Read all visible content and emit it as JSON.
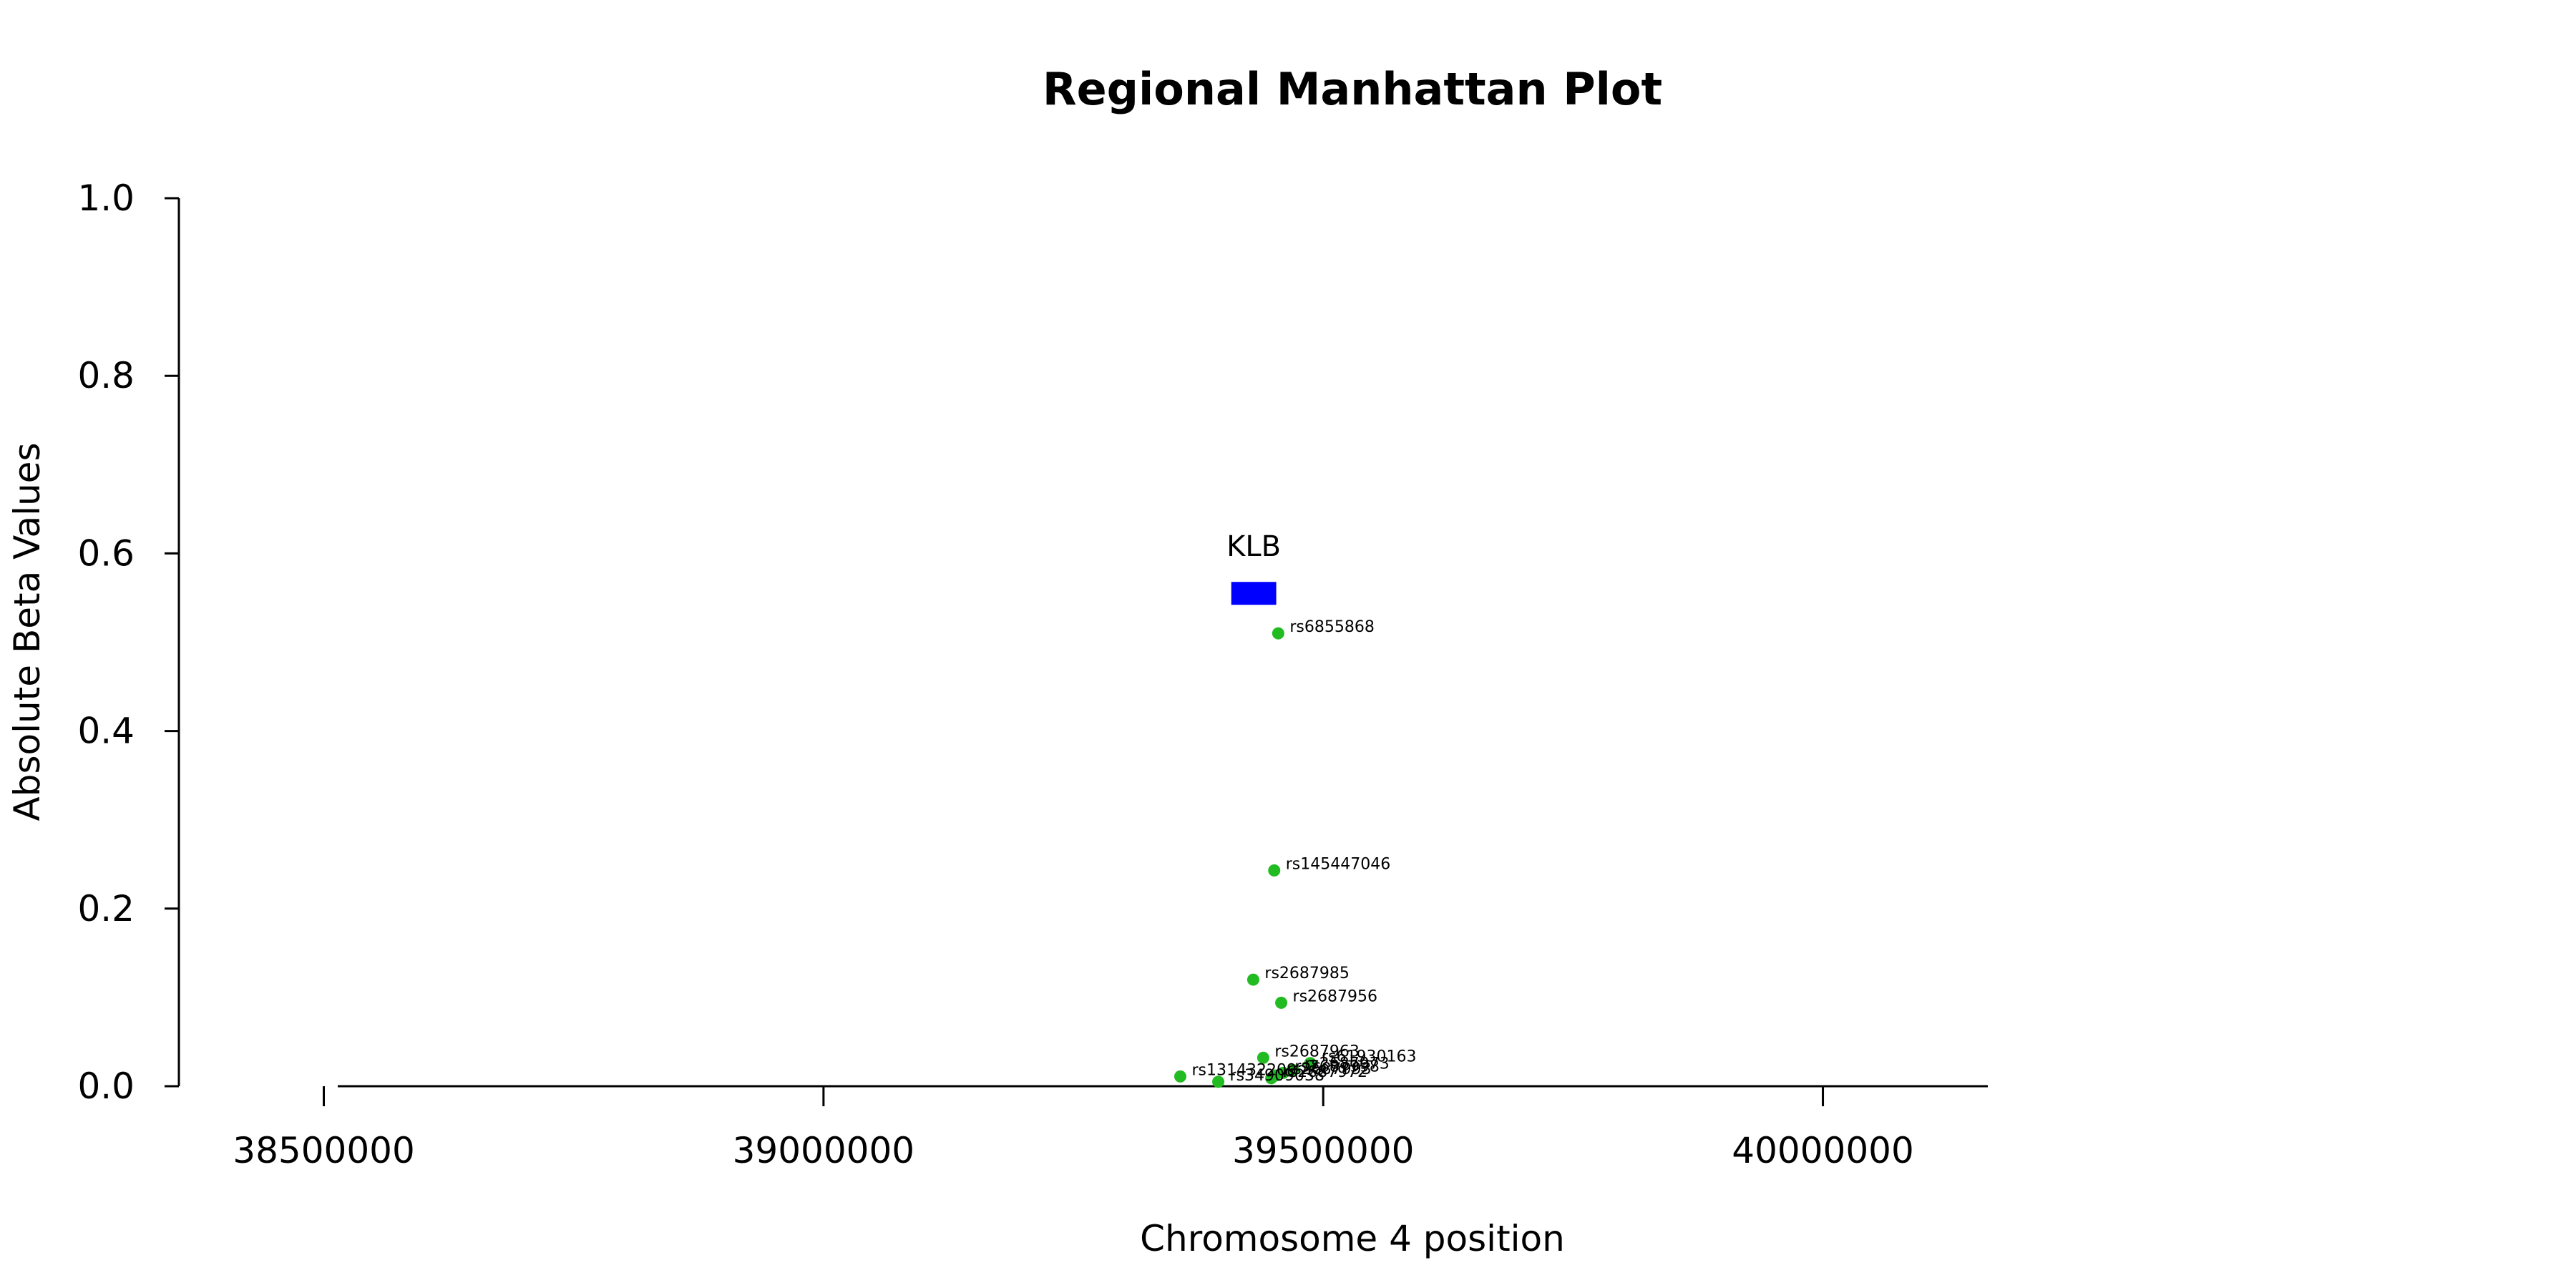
{
  "chart_data": {
    "type": "scatter",
    "title": "Regional Manhattan Plot",
    "xlabel": "Chromosome 4 position",
    "ylabel": "Absolute Beta Values",
    "xlim": [
      38355000,
      40165000
    ],
    "ylim": [
      0,
      1.0
    ],
    "xticks": [
      38500000,
      39000000,
      39500000,
      40000000
    ],
    "xtick_labels": [
      "38500000",
      "39000000",
      "39500000",
      "40000000"
    ],
    "yticks": [
      0,
      0.2,
      0.4,
      0.6,
      0.8,
      1.0
    ],
    "ytick_labels": [
      "0.0",
      "0.2",
      "0.4",
      "0.6",
      "0.8",
      "1.0"
    ],
    "grid": false,
    "point_color": "#22bb22",
    "genes": [
      {
        "name": "KLB",
        "start": 39408000,
        "end": 39453000,
        "y": 0.555,
        "color": "#0000ff"
      }
    ],
    "points": [
      {
        "label": "rs6855868",
        "x": 39455000,
        "y": 0.51
      },
      {
        "label": "rs145447046",
        "x": 39451000,
        "y": 0.243
      },
      {
        "label": "rs2687985",
        "x": 39430000,
        "y": 0.12
      },
      {
        "label": "rs2687956",
        "x": 39458000,
        "y": 0.094
      },
      {
        "label": "rs2687963",
        "x": 39440000,
        "y": 0.032
      },
      {
        "label": "rs61930163",
        "x": 39487000,
        "y": 0.026
      },
      {
        "label": "rs2687973",
        "x": 39470000,
        "y": 0.018
      },
      {
        "label": "rs2687998",
        "x": 39460000,
        "y": 0.015
      },
      {
        "label": "rs131432209",
        "x": 39357000,
        "y": 0.011
      },
      {
        "label": "rs2687972",
        "x": 39448000,
        "y": 0.009
      },
      {
        "label": "rs2687993",
        "x": 39452000,
        "y": 0.012
      },
      {
        "label": "rs34909038",
        "x": 39395000,
        "y": 0.005
      }
    ]
  }
}
